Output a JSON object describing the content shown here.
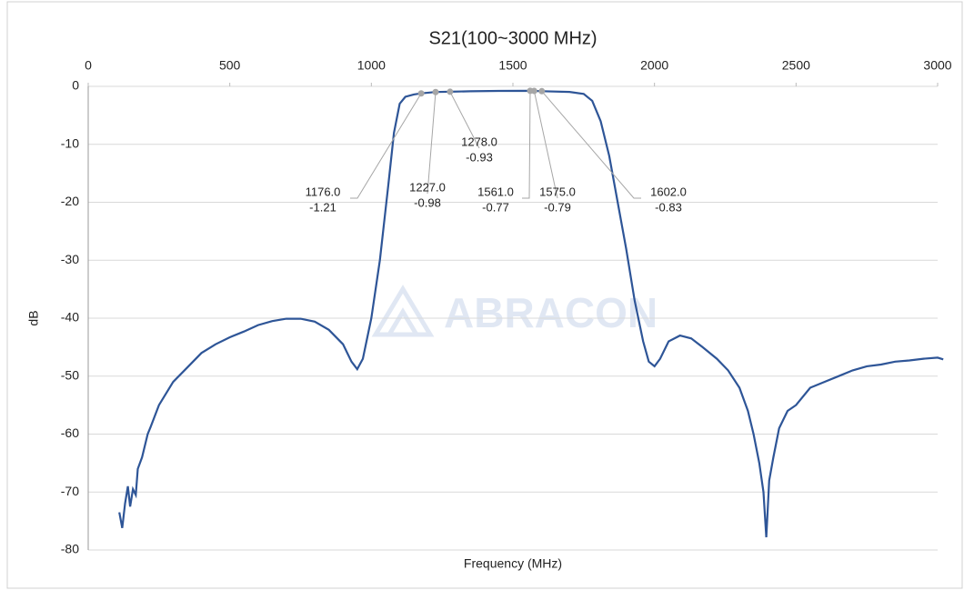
{
  "chart_data": {
    "type": "line",
    "title": "S21(100~3000 MHz)",
    "x_label": "Frequency (MHz)",
    "y_label": "dB",
    "watermark": "ABRACON",
    "xlim": [
      0,
      3000
    ],
    "xticks": [
      0,
      500,
      1000,
      1500,
      2000,
      2500,
      3000
    ],
    "ylim": [
      -80,
      0
    ],
    "yticks": [
      0,
      -10,
      -20,
      -30,
      -40,
      -50,
      -60,
      -70,
      -80
    ],
    "grid": true,
    "series": [
      {
        "name": "S21",
        "color": "#2e5597",
        "x": [
          110,
          120,
          130,
          140,
          148,
          158,
          168,
          175,
          190,
          210,
          220,
          250,
          300,
          350,
          400,
          450,
          500,
          550,
          600,
          650,
          700,
          750,
          800,
          850,
          900,
          930,
          950,
          970,
          1000,
          1030,
          1060,
          1080,
          1100,
          1120,
          1150,
          1176,
          1227,
          1278,
          1350,
          1450,
          1561,
          1575,
          1602,
          1700,
          1750,
          1780,
          1810,
          1840,
          1870,
          1900,
          1930,
          1960,
          1980,
          2000,
          2020,
          2050,
          2090,
          2130,
          2170,
          2220,
          2260,
          2300,
          2330,
          2350,
          2370,
          2385,
          2395,
          2405,
          2420,
          2440,
          2470,
          2500,
          2550,
          2600,
          2650,
          2700,
          2750,
          2800,
          2850,
          2900,
          2950,
          3000,
          3020
        ],
        "values": [
          -73.5,
          -76.2,
          -72,
          -69,
          -72.5,
          -69.5,
          -70.5,
          -66,
          -64,
          -60,
          -58.8,
          -55,
          -51,
          -48.5,
          -46,
          -44.5,
          -43.3,
          -42.3,
          -41.2,
          -40.5,
          -40.1,
          -40.1,
          -40.6,
          -42,
          -44.5,
          -47.5,
          -48.8,
          -47,
          -40,
          -30,
          -17,
          -8,
          -3,
          -1.8,
          -1.4,
          -1.21,
          -0.98,
          -0.93,
          -0.85,
          -0.78,
          -0.77,
          -0.79,
          -0.83,
          -0.95,
          -1.3,
          -2.5,
          -6,
          -12,
          -20,
          -28,
          -37,
          -44,
          -47.5,
          -48.3,
          -47,
          -44,
          -43,
          -43.5,
          -45,
          -47,
          -49,
          -52,
          -56,
          -60,
          -65,
          -70,
          -77.8,
          -68,
          -64,
          -59,
          -56,
          -55,
          -52,
          -51,
          -50,
          -49,
          -48.3,
          -48,
          -47.5,
          -47.3,
          -47,
          -46.8,
          -47.1
        ]
      },
      {
        "name": "Markers",
        "color": "#a6a6a6",
        "x": [
          1176,
          1227,
          1278,
          1561,
          1575,
          1602
        ],
        "x_labels": [
          "1176.0",
          "1227.0",
          "1278.0",
          "1561.0",
          "1575.0",
          "1602.0"
        ],
        "values": [
          -1.21,
          -0.98,
          -0.93,
          -0.77,
          -0.79,
          -0.83
        ]
      }
    ]
  }
}
